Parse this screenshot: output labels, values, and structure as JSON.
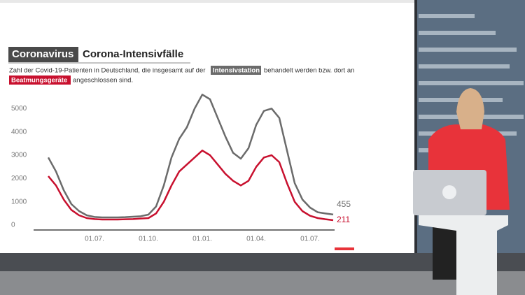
{
  "chart_data": {
    "type": "line",
    "title_tag": "Coronavirus",
    "title": "Corona-Intensivfälle",
    "subtitle_parts": [
      "Zahl der Covid-19-Patienten in Deutschland, die insgesamt auf der",
      "behandelt werden bzw. dort an",
      "angeschlossen sind."
    ],
    "categories": [
      null,
      null,
      null,
      null,
      null,
      null,
      "01.07.",
      null,
      null,
      null,
      null,
      null,
      null,
      "01.10.",
      null,
      null,
      null,
      null,
      null,
      null,
      "01.01.",
      null,
      null,
      null,
      null,
      null,
      null,
      "01.04.",
      null,
      null,
      null,
      null,
      null,
      null,
      "01.07.",
      null,
      null,
      null
    ],
    "series": [
      {
        "name": "Intensivstation",
        "color": "#6b6b6b",
        "values": [
          2900,
          2300,
          1500,
          900,
          600,
          420,
          350,
          330,
          330,
          330,
          340,
          360,
          380,
          450,
          800,
          1700,
          2900,
          3700,
          4200,
          5000,
          5600,
          5400,
          4600,
          3800,
          3100,
          2850,
          3300,
          4300,
          4900,
          5000,
          4600,
          3200,
          1800,
          1100,
          750,
          550,
          500,
          455
        ]
      },
      {
        "name": "Beatmungsgeräte",
        "color": "#c8102e",
        "values": [
          2100,
          1700,
          1100,
          650,
          420,
          300,
          260,
          240,
          240,
          240,
          250,
          260,
          280,
          300,
          500,
          1000,
          1700,
          2300,
          2600,
          2900,
          3200,
          3000,
          2600,
          2200,
          1900,
          1700,
          1900,
          2500,
          2900,
          3000,
          2700,
          1800,
          1000,
          600,
          400,
          300,
          250,
          211
        ]
      }
    ],
    "ylim": [
      0,
      5700
    ],
    "yticks": [
      0,
      1000,
      2000,
      3000,
      4000,
      5000
    ]
  }
}
